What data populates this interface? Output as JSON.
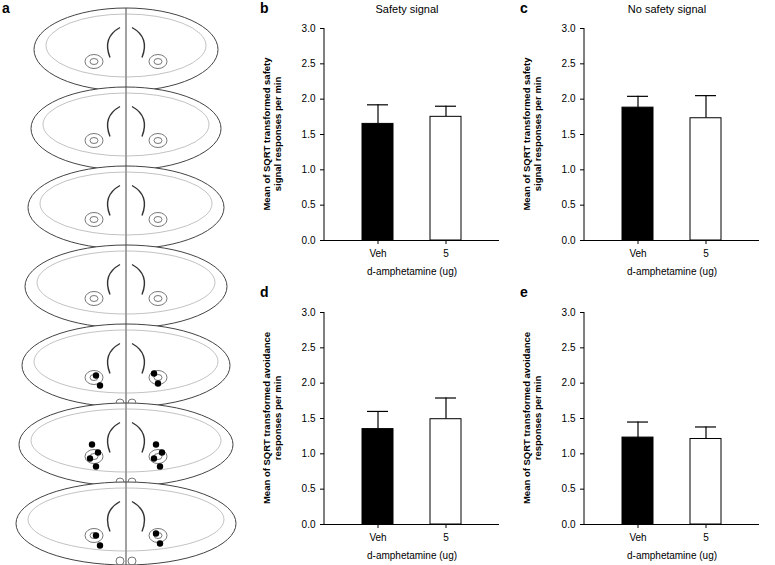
{
  "diagram": {
    "panel_label": "a"
  },
  "chart_data": [
    {
      "type": "bar",
      "panel_label": "b",
      "title": "Safety signal",
      "categories": [
        "Veh",
        "5"
      ],
      "values": [
        1.65,
        1.75
      ],
      "errors": [
        0.27,
        0.15
      ],
      "colors": [
        "#000000",
        "#ffffff"
      ],
      "x_label": "d-amphetamine (ug)",
      "y_label": "Mean of SQRT transformed safety signal responses per min",
      "ylim": [
        0,
        3
      ],
      "yticks": [
        {
          "value": 0,
          "label": "0.0"
        },
        {
          "value": 0.5,
          "label": "0.5"
        },
        {
          "value": 1,
          "label": "1.0"
        },
        {
          "value": 1.5,
          "label": "1.5"
        },
        {
          "value": 2,
          "label": "2.0"
        },
        {
          "value": 2.5,
          "label": "2.5"
        },
        {
          "value": 3,
          "label": "3.0"
        }
      ]
    },
    {
      "type": "bar",
      "panel_label": "c",
      "title": "No safety signal",
      "categories": [
        "Veh",
        "5"
      ],
      "values": [
        1.88,
        1.73
      ],
      "errors": [
        0.16,
        0.32
      ],
      "colors": [
        "#000000",
        "#ffffff"
      ],
      "x_label": "d-amphetamine (ug)",
      "y_label": "Mean of SQRT transformed safety signal responses per min",
      "ylim": [
        0,
        3
      ],
      "yticks": [
        {
          "value": 0,
          "label": "0.0"
        },
        {
          "value": 0.5,
          "label": "0.5"
        },
        {
          "value": 1,
          "label": "1.0"
        },
        {
          "value": 1.5,
          "label": "1.5"
        },
        {
          "value": 2,
          "label": "2.0"
        },
        {
          "value": 2.5,
          "label": "2.5"
        },
        {
          "value": 3,
          "label": "3.0"
        }
      ]
    },
    {
      "type": "bar",
      "panel_label": "d",
      "categories": [
        "Veh",
        "5"
      ],
      "values": [
        1.35,
        1.49
      ],
      "errors": [
        0.25,
        0.3
      ],
      "colors": [
        "#000000",
        "#ffffff"
      ],
      "x_label": "d-amphetamine (ug)",
      "y_label": "Mean of SQRT transformed avoidance responses per min",
      "ylim": [
        0,
        3
      ],
      "yticks": [
        {
          "value": 0,
          "label": "0.0"
        },
        {
          "value": 0.5,
          "label": "0.5"
        },
        {
          "value": 1,
          "label": "1.0"
        },
        {
          "value": 1.5,
          "label": "1.5"
        },
        {
          "value": 2,
          "label": "2.0"
        },
        {
          "value": 2.5,
          "label": "2.5"
        },
        {
          "value": 3,
          "label": "3.0"
        }
      ]
    },
    {
      "type": "bar",
      "panel_label": "e",
      "categories": [
        "Veh",
        "5"
      ],
      "values": [
        1.23,
        1.21
      ],
      "errors": [
        0.22,
        0.17
      ],
      "colors": [
        "#000000",
        "#ffffff"
      ],
      "x_label": "d-amphetamine (ug)",
      "y_label": "Mean of SQRT transformed avoidance responses per min",
      "ylim": [
        0,
        3
      ],
      "yticks": [
        {
          "value": 0,
          "label": "0.0"
        },
        {
          "value": 0.5,
          "label": "0.5"
        },
        {
          "value": 1,
          "label": "1.0"
        },
        {
          "value": 1.5,
          "label": "1.5"
        },
        {
          "value": 2,
          "label": "2.0"
        },
        {
          "value": 2.5,
          "label": "2.5"
        },
        {
          "value": 3,
          "label": "3.0"
        }
      ]
    }
  ]
}
